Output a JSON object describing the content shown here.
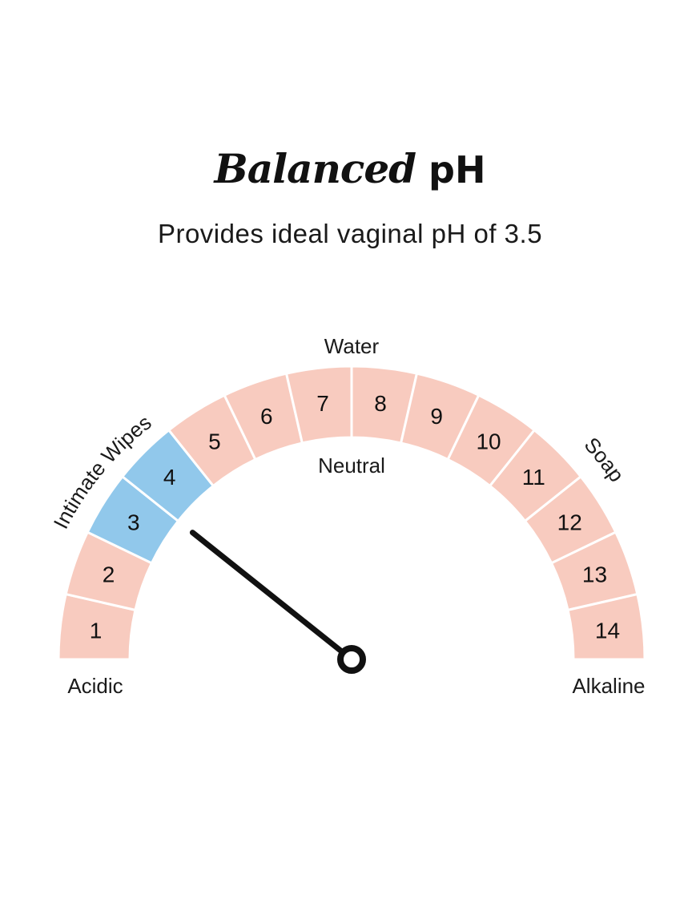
{
  "header": {
    "title_script": "Balanced",
    "title_plain": "pH",
    "subtitle": "Provides ideal vaginal pH of 3.5"
  },
  "gauge": {
    "segments": [
      {
        "label": "1",
        "highlighted": false
      },
      {
        "label": "2",
        "highlighted": false
      },
      {
        "label": "3",
        "highlighted": true
      },
      {
        "label": "4",
        "highlighted": true
      },
      {
        "label": "5",
        "highlighted": false
      },
      {
        "label": "6",
        "highlighted": false
      },
      {
        "label": "7",
        "highlighted": false
      },
      {
        "label": "8",
        "highlighted": false
      },
      {
        "label": "9",
        "highlighted": false
      },
      {
        "label": "10",
        "highlighted": false
      },
      {
        "label": "11",
        "highlighted": false
      },
      {
        "label": "12",
        "highlighted": false
      },
      {
        "label": "13",
        "highlighted": false
      },
      {
        "label": "14",
        "highlighted": false
      }
    ],
    "needle_value": 3.5,
    "colors": {
      "segment": "#f8cbbf",
      "highlight": "#91c8eb",
      "needle": "#111111",
      "divider": "#ffffff"
    },
    "labels": {
      "acidic": "Acidic",
      "alkaline": "Alkaline",
      "neutral": "Neutral",
      "water": "Water",
      "intimate_wipes": "Intimate Wipes",
      "soap": "Soap"
    }
  }
}
